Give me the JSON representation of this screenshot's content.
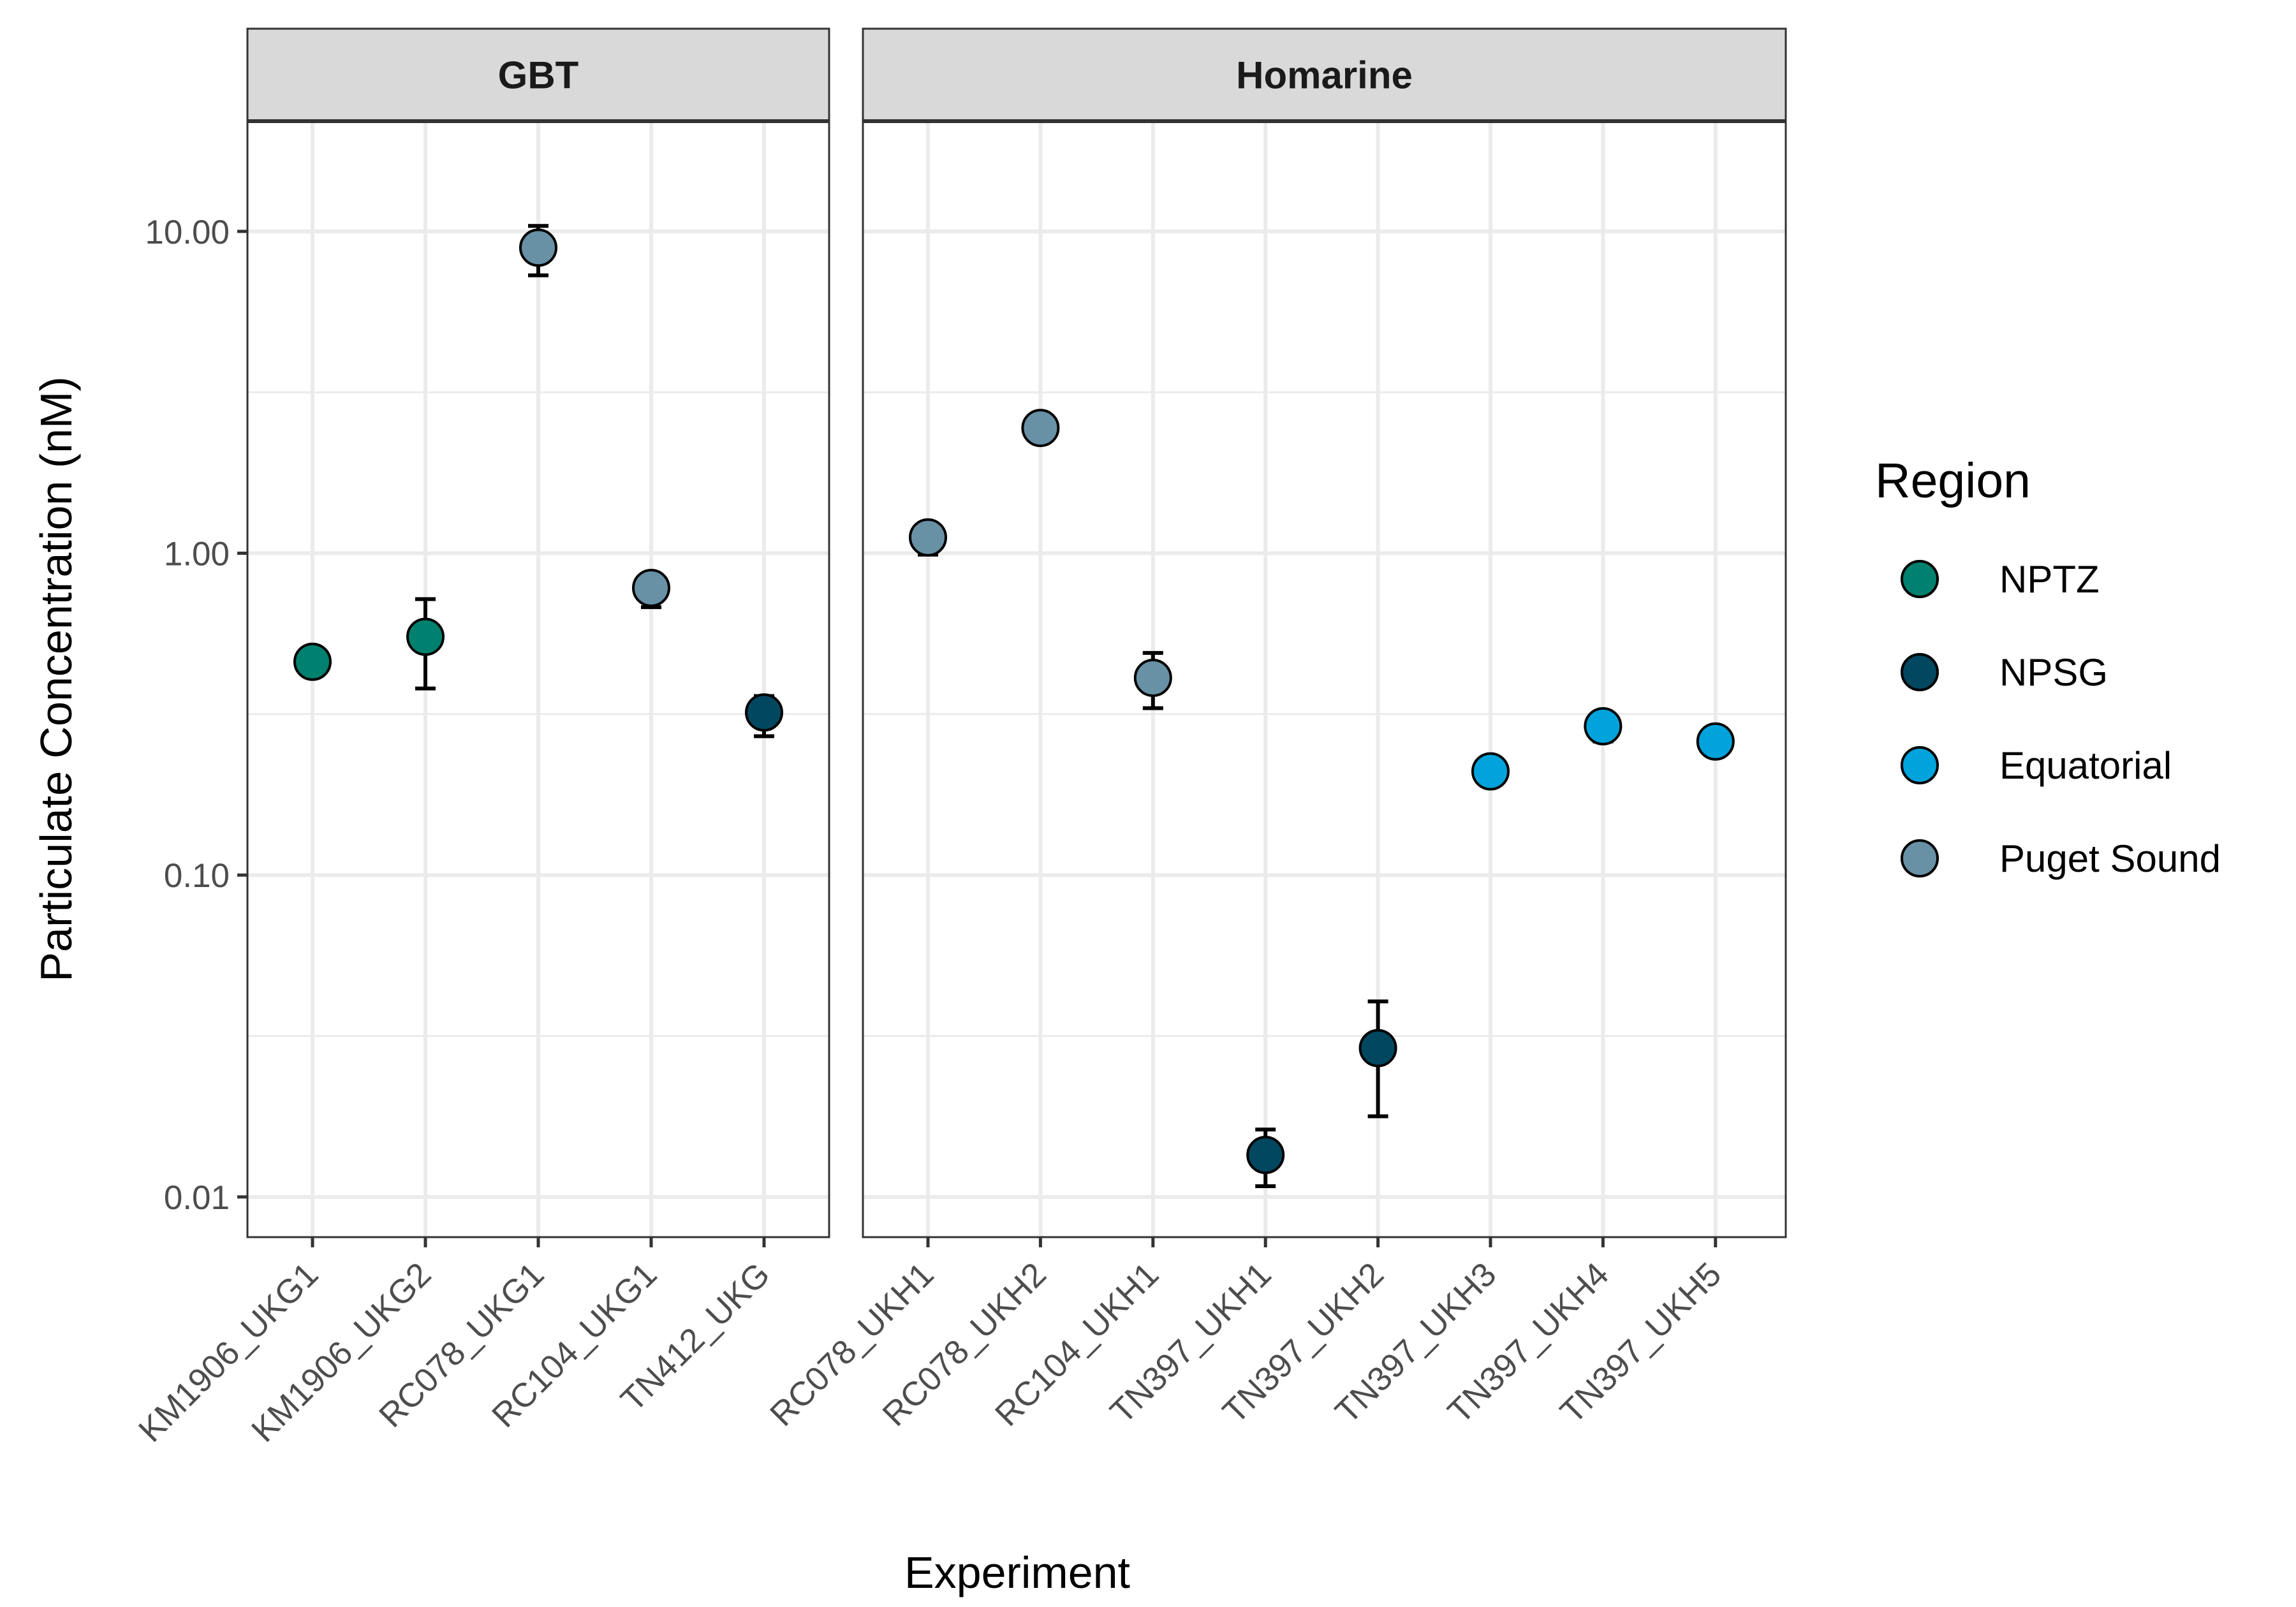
{
  "chart_data": {
    "type": "scatter",
    "xlabel": "Experiment",
    "ylabel": "Particulate Concentration (nM)",
    "y_scale": "log10",
    "ylim": [
      0.0075,
      22
    ],
    "y_ticks": [
      0.01,
      0.1,
      1,
      10
    ],
    "y_tick_labels": [
      "0.01",
      "0.10",
      "1.00",
      "10.00"
    ],
    "grid": true,
    "legend_position": "right",
    "legend": {
      "title": "Region",
      "entries": [
        {
          "name": "NPTZ",
          "color": "#00806E"
        },
        {
          "name": "NPSG",
          "color": "#00475F"
        },
        {
          "name": "Equatorial",
          "color": "#00A3DC"
        },
        {
          "name": "Puget Sound",
          "color": "#6891A5"
        }
      ]
    },
    "panels": [
      {
        "title": "GBT",
        "categories": [
          "KM1906_UKG1",
          "KM1906_UKG2",
          "RC078_UKG1",
          "RC104_UKG1",
          "TN412_UKG"
        ],
        "points": [
          {
            "x": "KM1906_UKG1",
            "y": 0.46,
            "ymin": 0.46,
            "ymax": 0.46,
            "region": "NPTZ"
          },
          {
            "x": "KM1906_UKG2",
            "y": 0.55,
            "ymin": 0.38,
            "ymax": 0.72,
            "region": "NPTZ"
          },
          {
            "x": "RC078_UKG1",
            "y": 8.9,
            "ymin": 7.3,
            "ymax": 10.4,
            "region": "Puget Sound"
          },
          {
            "x": "RC104_UKG1",
            "y": 0.78,
            "ymin": 0.68,
            "ymax": 0.83,
            "region": "Puget Sound"
          },
          {
            "x": "TN412_UKG",
            "y": 0.32,
            "ymin": 0.27,
            "ymax": 0.36,
            "region": "NPSG"
          }
        ]
      },
      {
        "title": "Homarine",
        "categories": [
          "RC078_UKH1",
          "RC078_UKH2",
          "RC104_UKH1",
          "TN397_UKH1",
          "TN397_UKH2",
          "TN397_UKH3",
          "TN397_UKH4",
          "TN397_UKH5"
        ],
        "points": [
          {
            "x": "RC078_UKH1",
            "y": 1.12,
            "ymin": 0.99,
            "ymax": 1.12,
            "region": "Puget Sound"
          },
          {
            "x": "RC078_UKH2",
            "y": 2.45,
            "ymin": 2.45,
            "ymax": 2.45,
            "region": "Puget Sound"
          },
          {
            "x": "RC104_UKH1",
            "y": 0.41,
            "ymin": 0.33,
            "ymax": 0.49,
            "region": "Puget Sound"
          },
          {
            "x": "TN397_UKH1",
            "y": 0.0135,
            "ymin": 0.0108,
            "ymax": 0.0162,
            "region": "NPSG"
          },
          {
            "x": "TN397_UKH2",
            "y": 0.029,
            "ymin": 0.0178,
            "ymax": 0.0405,
            "region": "NPSG"
          },
          {
            "x": "TN397_UKH3",
            "y": 0.21,
            "ymin": 0.21,
            "ymax": 0.21,
            "region": "Equatorial"
          },
          {
            "x": "TN397_UKH4",
            "y": 0.29,
            "ymin": 0.26,
            "ymax": 0.29,
            "region": "Equatorial"
          },
          {
            "x": "TN397_UKH5",
            "y": 0.26,
            "ymin": 0.26,
            "ymax": 0.26,
            "region": "Equatorial"
          }
        ]
      }
    ]
  }
}
